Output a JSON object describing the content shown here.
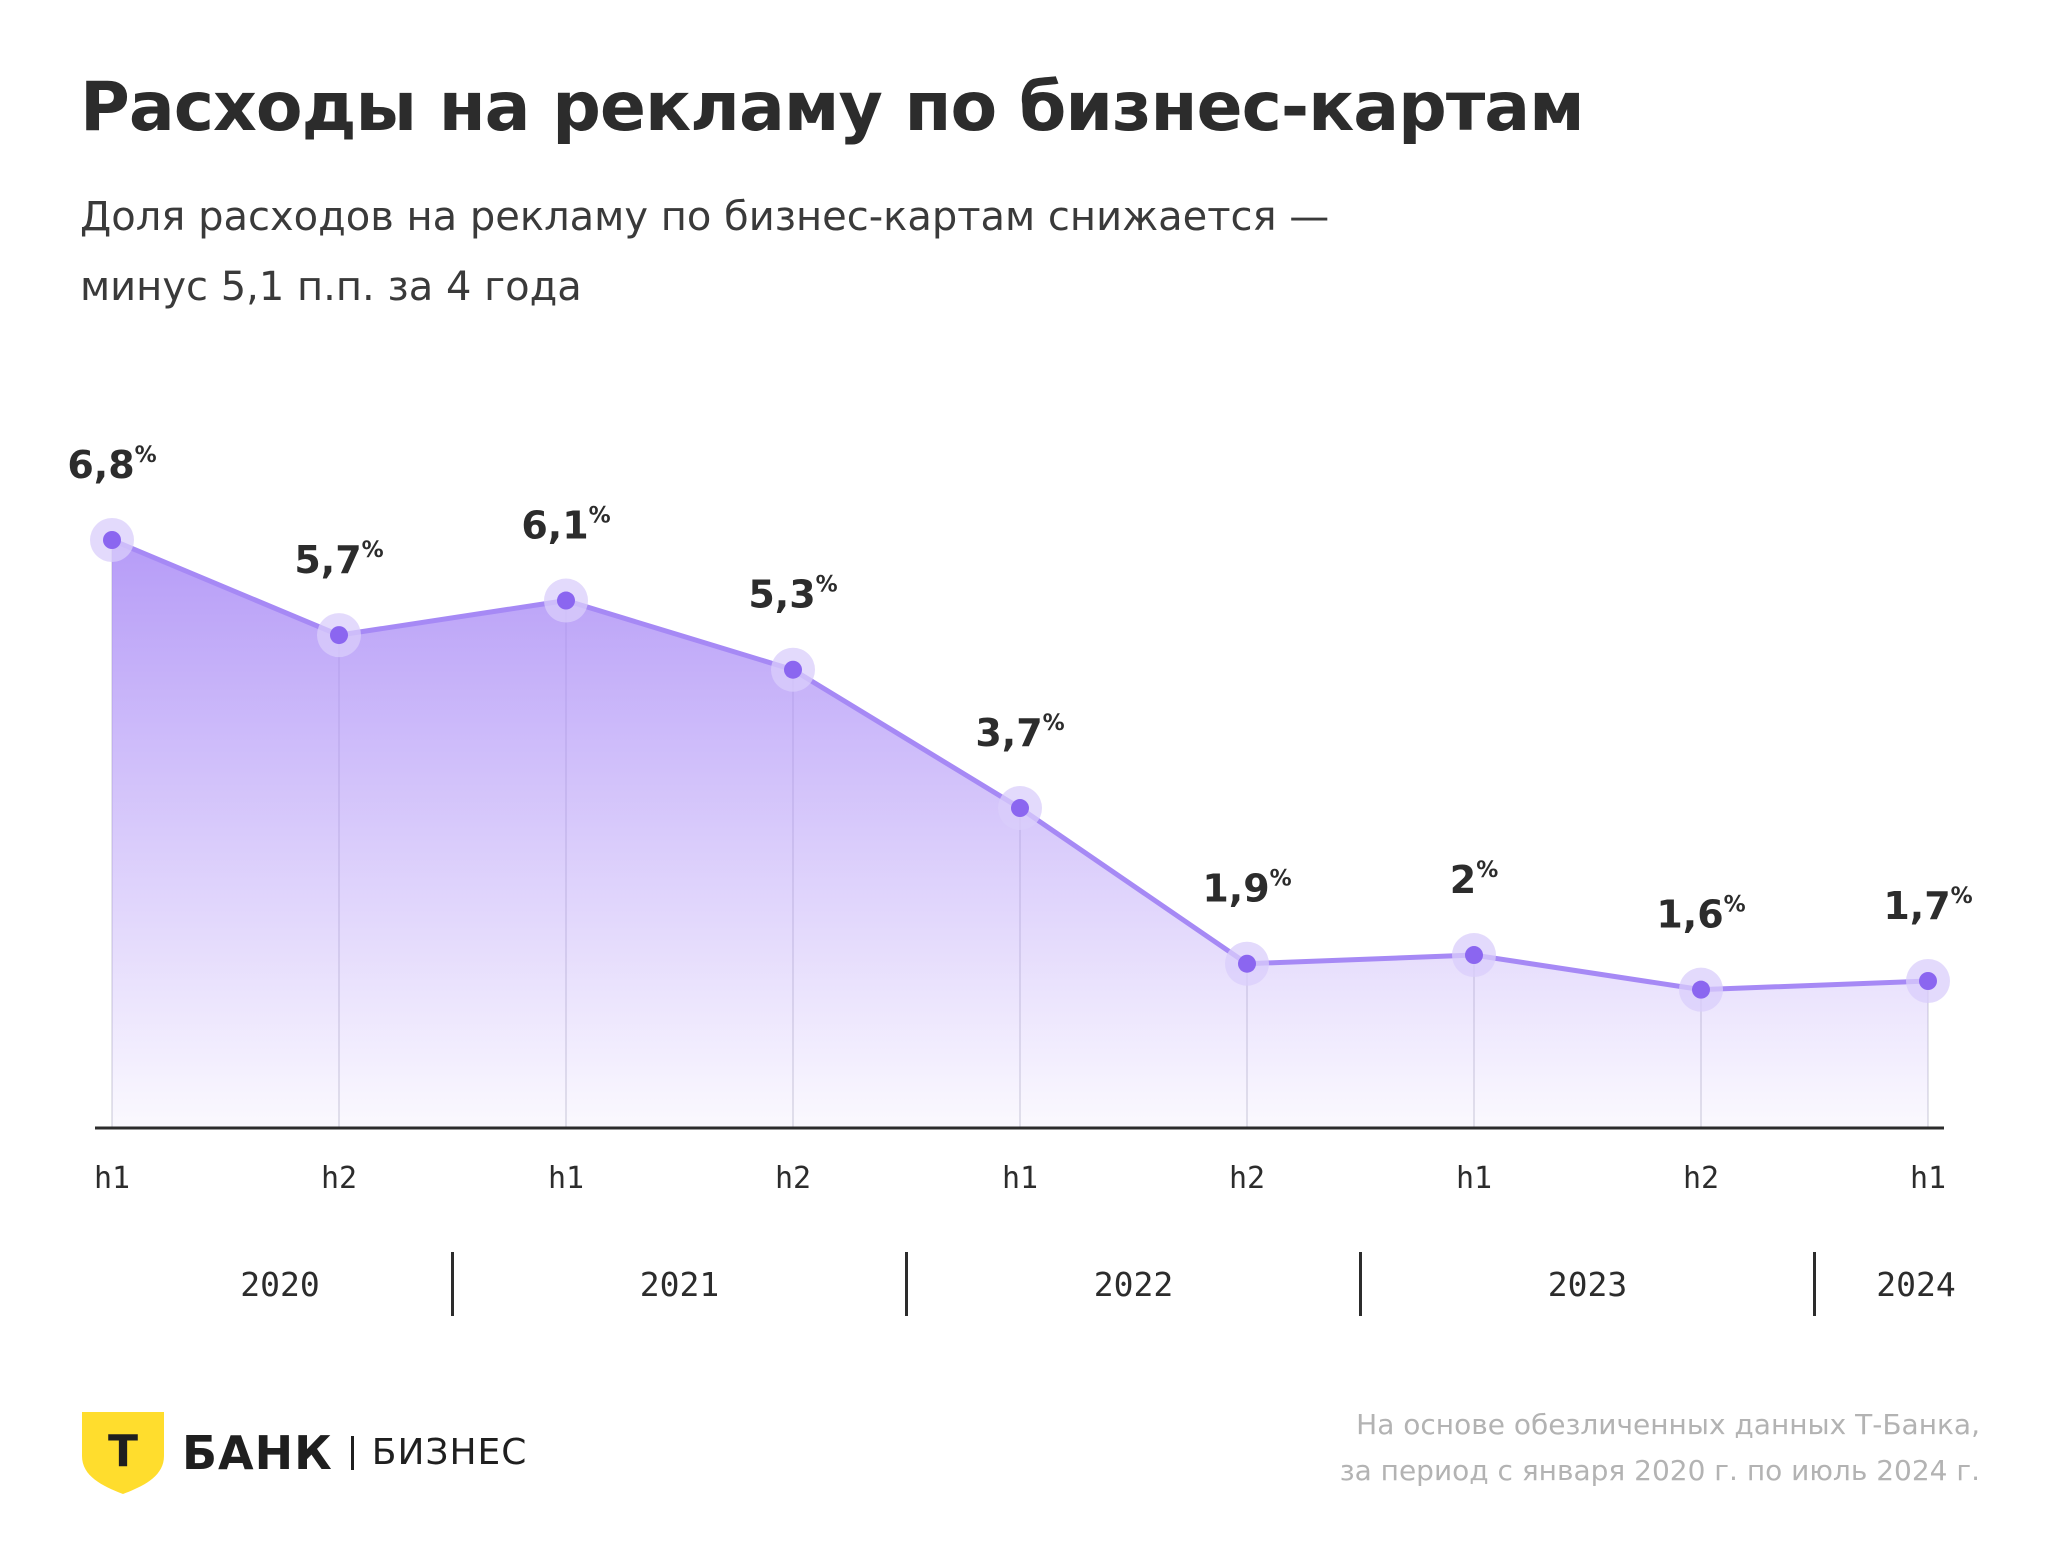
{
  "title": "Расходы на рекламу по бизнес-картам",
  "subtitle_lines": [
    "Доля расходов на рекламу по бизнес-картам снижается —",
    "минус 5,1 п.п. за 4 года"
  ],
  "chart_data": {
    "type": "area",
    "x": [
      "h1",
      "h2",
      "h1",
      "h2",
      "h1",
      "h2",
      "h1",
      "h2",
      "h1"
    ],
    "values": [
      6.8,
      5.7,
      6.1,
      5.3,
      3.7,
      1.9,
      2.0,
      1.6,
      1.7
    ],
    "value_labels": [
      "6,8",
      "5,7",
      "6,1",
      "5,3",
      "3,7",
      "1,9",
      "2",
      "1,6",
      "1,7"
    ],
    "unit": "%",
    "years": [
      "2020",
      "2021",
      "2022",
      "2023",
      "2024"
    ],
    "ylim": [
      0,
      6.8
    ],
    "grid": false,
    "colors": {
      "line": "#a689f5",
      "dot": "#8b66f0",
      "halo": "#d9cdfb",
      "fill": "#a98af6"
    }
  },
  "logo": {
    "letter": "Т",
    "brand": "БАНК",
    "sub": "БИЗНЕС",
    "shield_color": "#ffdd2d"
  },
  "source_lines": [
    "На основе обезличенных данных Т-Банка,",
    "за период с января 2020 г. по июль 2024 г."
  ]
}
